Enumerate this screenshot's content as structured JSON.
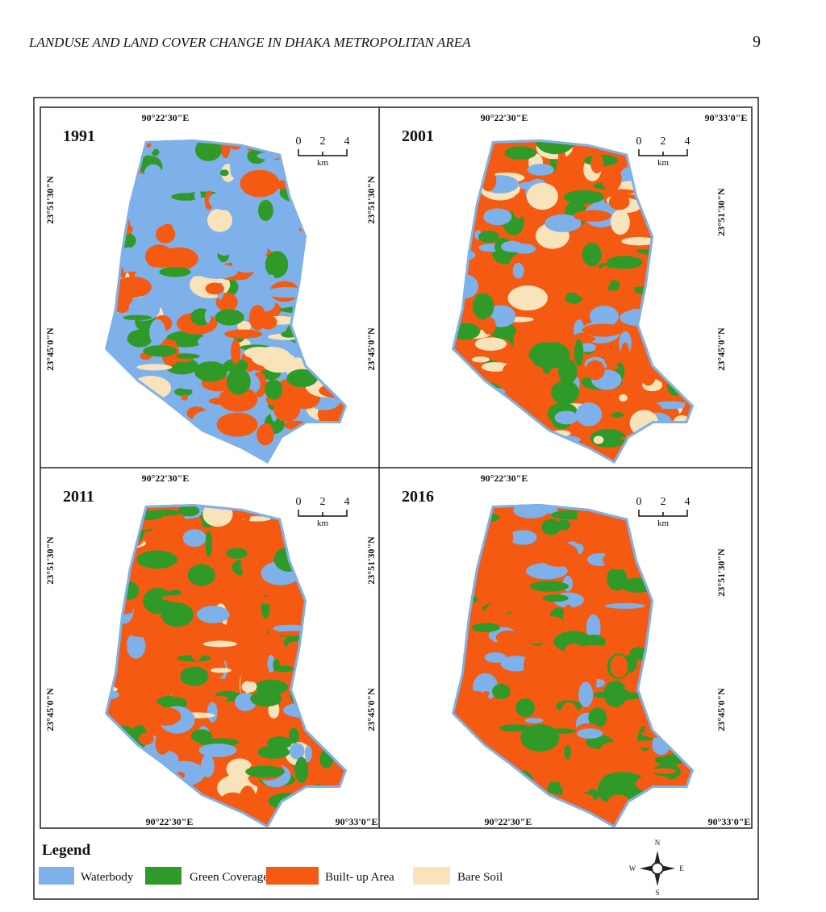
{
  "header": {
    "title": "LANDUSE AND LAND COVER CHANGE IN DHAKA METROPOLITAN AREA",
    "page_number": "9"
  },
  "figure": {
    "panels": [
      {
        "year": "1991",
        "scale": {
          "ticks": [
            "0",
            "2",
            "4"
          ],
          "unit": "km"
        },
        "top_labels": [
          "90°22'30\"E"
        ],
        "left_labels": [
          "23°51'30\"N",
          "23°45'0\"N"
        ],
        "right_labels": [],
        "bottom_labels": []
      },
      {
        "year": "2001",
        "scale": {
          "ticks": [
            "0",
            "2",
            "4"
          ],
          "unit": "km"
        },
        "top_labels": [
          "90°22'30\"E",
          "90°33'0\"E"
        ],
        "left_labels": [
          "23°51'30\"N",
          "23°45'0\"N"
        ],
        "right_labels": [
          "23°51'30\"N",
          "23°45'0\"N"
        ],
        "bottom_labels": []
      },
      {
        "year": "2011",
        "scale": {
          "ticks": [
            "0",
            "2",
            "4"
          ],
          "unit": "km"
        },
        "top_labels": [
          "90°22'30\"E"
        ],
        "left_labels": [
          "23°51'30\"N",
          "23°45'0\"N"
        ],
        "right_labels": [],
        "bottom_labels": [
          "90°22'30\"E",
          "90°33'0\"E"
        ]
      },
      {
        "year": "2016",
        "scale": {
          "ticks": [
            "0",
            "2",
            "4"
          ],
          "unit": "km"
        },
        "top_labels": [
          "90°22'30\"E"
        ],
        "left_labels": [
          "23°51'30\"N",
          "23°45'0\"N"
        ],
        "right_labels": [
          "23°51'30\"N",
          "23°45'0\"N"
        ],
        "bottom_labels": [
          "90°22'30\"E",
          "90°33'0\"E"
        ]
      }
    ],
    "legend": {
      "title": "Legend",
      "items": [
        {
          "label": "Waterbody",
          "color": "#7eb1ea"
        },
        {
          "label": "Green Coverage",
          "color": "#2f9a27"
        },
        {
          "label": "Built- up Area",
          "color": "#f45a12"
        },
        {
          "label": "Bare Soil",
          "color": "#f8e3bb"
        }
      ]
    },
    "compass": {
      "north": "N",
      "west": "W",
      "east": "E",
      "south": "S"
    }
  }
}
